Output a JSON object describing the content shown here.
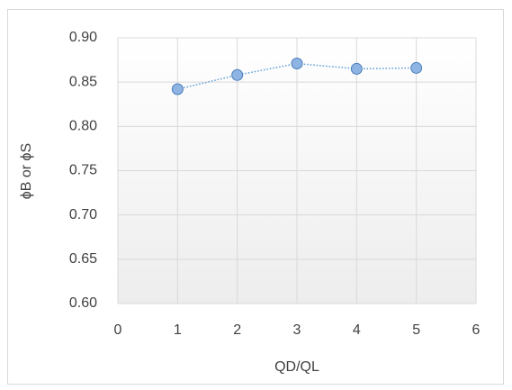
{
  "chart_data": {
    "type": "line",
    "x_label": "QD/QL",
    "y_label": "ϕB or ϕS",
    "x": [
      1,
      2,
      3,
      4,
      5
    ],
    "series": [
      {
        "color": "#5b9bd5",
        "marker_fill": "#8eb4e3",
        "marker_edge": "#4a7ebb",
        "line_style": "dotted",
        "values": [
          0.842,
          0.858,
          0.871,
          0.865,
          0.866
        ]
      }
    ],
    "xlim": [
      0,
      6
    ],
    "xticks": [
      0,
      1,
      2,
      3,
      4,
      5,
      6
    ],
    "ylim": [
      0.6,
      0.9
    ],
    "yticks": [
      {
        "value": 0.6,
        "label": "0.60"
      },
      0.65,
      {
        "value": 0.7,
        "label": "0.70"
      },
      0.75,
      {
        "value": 0.8,
        "label": "0.80"
      },
      0.85,
      {
        "value": 0.9,
        "label": "0.90"
      }
    ],
    "grid": true
  }
}
